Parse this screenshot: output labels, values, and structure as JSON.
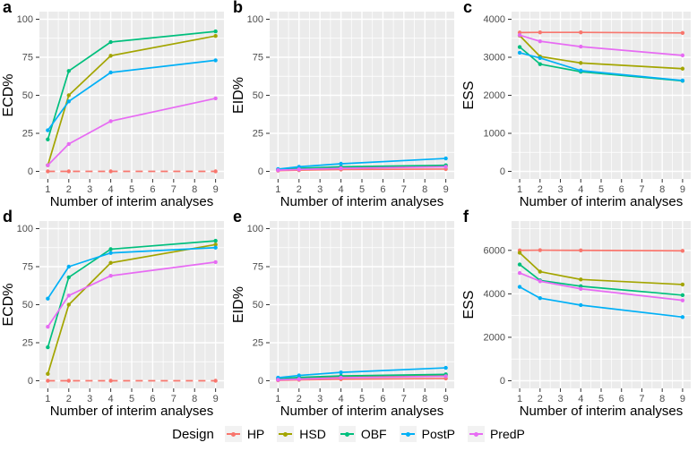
{
  "figure": {
    "legend": {
      "title": "Design",
      "entries": [
        {
          "label": "HP",
          "color": "#F8766D"
        },
        {
          "label": "HSD",
          "color": "#A3A500"
        },
        {
          "label": "OBF",
          "color": "#00BF7D"
        },
        {
          "label": "PostP",
          "color": "#00B0F6"
        },
        {
          "label": "PredP",
          "color": "#E76BF3"
        }
      ]
    },
    "colors": {
      "panel_background": "#EBEBEB",
      "grid_line": "#FFFFFF",
      "tick_label": "#4D4D4D",
      "tick_mark": "#333333",
      "axis_title": "#000000"
    }
  },
  "chart_data": [
    {
      "type": "line",
      "panel": "a",
      "xlabel": "Number of interim analyses",
      "ylabel": "ECD%",
      "x": [
        1,
        2,
        4,
        9
      ],
      "xticks": [
        1,
        2,
        3,
        4,
        5,
        6,
        7,
        8,
        9
      ],
      "ylim": [
        0,
        100
      ],
      "yticks": [
        0,
        25,
        50,
        75,
        100
      ],
      "series": [
        {
          "name": "HP",
          "dashed": true,
          "values": [
            0,
            0,
            0,
            0
          ]
        },
        {
          "name": "HSD",
          "dashed": false,
          "values": [
            4,
            50,
            76,
            89
          ]
        },
        {
          "name": "OBF",
          "dashed": false,
          "values": [
            21,
            66,
            85,
            92
          ]
        },
        {
          "name": "PostP",
          "dashed": false,
          "values": [
            27,
            46,
            65,
            73
          ]
        },
        {
          "name": "PredP",
          "dashed": false,
          "values": [
            4,
            18,
            33,
            48
          ]
        }
      ]
    },
    {
      "type": "line",
      "panel": "b",
      "xlabel": "Number of interim analyses",
      "ylabel": "EID%",
      "x": [
        1,
        2,
        4,
        9
      ],
      "xticks": [
        1,
        2,
        3,
        4,
        5,
        6,
        7,
        8,
        9
      ],
      "ylim": [
        0,
        100
      ],
      "yticks": [
        0,
        25,
        50,
        75,
        100
      ],
      "series": [
        {
          "name": "HP",
          "dashed": false,
          "values": [
            0.5,
            0.8,
            1.2,
            1.5
          ]
        },
        {
          "name": "HSD",
          "dashed": false,
          "values": [
            1,
            1.6,
            2.5,
            3.4
          ]
        },
        {
          "name": "OBF",
          "dashed": false,
          "values": [
            1.2,
            2,
            3,
            4
          ]
        },
        {
          "name": "PostP",
          "dashed": false,
          "values": [
            1.5,
            3,
            5,
            8.5
          ]
        },
        {
          "name": "PredP",
          "dashed": false,
          "values": [
            0.8,
            1.3,
            2,
            3
          ]
        }
      ]
    },
    {
      "type": "line",
      "panel": "c",
      "xlabel": "Number of interim analyses",
      "ylabel": "ESS",
      "x": [
        1,
        2,
        4,
        9
      ],
      "xticks": [
        1,
        2,
        3,
        4,
        5,
        6,
        7,
        8,
        9
      ],
      "ylim": [
        0,
        4000
      ],
      "yticks": [
        0,
        1000,
        2000,
        3000,
        4000
      ],
      "series": [
        {
          "name": "HP",
          "dashed": false,
          "values": [
            3650,
            3655,
            3655,
            3640
          ]
        },
        {
          "name": "HSD",
          "dashed": false,
          "values": [
            3570,
            3020,
            2850,
            2700
          ]
        },
        {
          "name": "OBF",
          "dashed": false,
          "values": [
            3270,
            2820,
            2620,
            2380
          ]
        },
        {
          "name": "PostP",
          "dashed": false,
          "values": [
            3120,
            2980,
            2650,
            2390
          ]
        },
        {
          "name": "PredP",
          "dashed": false,
          "values": [
            3580,
            3420,
            3280,
            3050
          ]
        }
      ]
    },
    {
      "type": "line",
      "panel": "d",
      "xlabel": "Number of interim analyses",
      "ylabel": "ECD%",
      "x": [
        1,
        2,
        4,
        9
      ],
      "xticks": [
        1,
        2,
        3,
        4,
        5,
        6,
        7,
        8,
        9
      ],
      "ylim": [
        0,
        100
      ],
      "yticks": [
        0,
        25,
        50,
        75,
        100
      ],
      "series": [
        {
          "name": "HP",
          "dashed": true,
          "values": [
            0,
            0,
            0,
            0
          ]
        },
        {
          "name": "HSD",
          "dashed": false,
          "values": [
            4.5,
            50,
            77.5,
            89.5
          ]
        },
        {
          "name": "OBF",
          "dashed": false,
          "values": [
            22,
            68,
            86.5,
            92
          ]
        },
        {
          "name": "PostP",
          "dashed": false,
          "values": [
            54,
            75,
            84,
            87.5
          ]
        },
        {
          "name": "PredP",
          "dashed": false,
          "values": [
            35.5,
            56,
            69,
            78
          ]
        }
      ]
    },
    {
      "type": "line",
      "panel": "e",
      "xlabel": "Number of interim analyses",
      "ylabel": "EID%",
      "x": [
        1,
        2,
        4,
        9
      ],
      "xticks": [
        1,
        2,
        3,
        4,
        5,
        6,
        7,
        8,
        9
      ],
      "ylim": [
        0,
        100
      ],
      "yticks": [
        0,
        25,
        50,
        75,
        100
      ],
      "series": [
        {
          "name": "HP",
          "dashed": false,
          "values": [
            0.3,
            0.6,
            1,
            1.5
          ]
        },
        {
          "name": "HSD",
          "dashed": false,
          "values": [
            0.8,
            1.6,
            2.5,
            3.5
          ]
        },
        {
          "name": "OBF",
          "dashed": false,
          "values": [
            1.2,
            2.2,
            3.2,
            4.2
          ]
        },
        {
          "name": "PostP",
          "dashed": false,
          "values": [
            2,
            3.5,
            5.5,
            8.5
          ]
        },
        {
          "name": "PredP",
          "dashed": false,
          "values": [
            0.6,
            1.1,
            2,
            3
          ]
        }
      ]
    },
    {
      "type": "line",
      "panel": "f",
      "xlabel": "Number of interim analyses",
      "ylabel": "ESS",
      "x": [
        1,
        2,
        4,
        9
      ],
      "xticks": [
        1,
        2,
        3,
        4,
        5,
        6,
        7,
        8,
        9
      ],
      "ylim": [
        0,
        7000
      ],
      "yticks": [
        0,
        2000,
        4000,
        6000
      ],
      "series": [
        {
          "name": "HP",
          "dashed": false,
          "values": [
            6000,
            6010,
            6000,
            5980
          ]
        },
        {
          "name": "HSD",
          "dashed": false,
          "values": [
            5890,
            5020,
            4660,
            4430
          ]
        },
        {
          "name": "OBF",
          "dashed": false,
          "values": [
            5350,
            4620,
            4350,
            3940
          ]
        },
        {
          "name": "PostP",
          "dashed": false,
          "values": [
            4320,
            3800,
            3480,
            2930
          ]
        },
        {
          "name": "PredP",
          "dashed": false,
          "values": [
            4960,
            4580,
            4230,
            3700
          ]
        }
      ]
    }
  ]
}
